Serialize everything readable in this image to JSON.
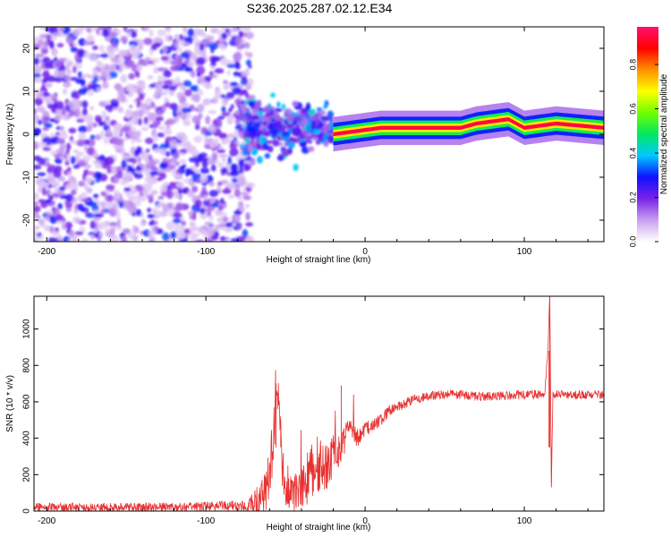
{
  "title": "S236.2025.287.02.12.E34",
  "chart_data": [
    {
      "type": "heatmap",
      "name": "spectrogram",
      "xlabel": "Height of straight line (km)",
      "ylabel": "Frequency (Hz)",
      "xlim": [
        -208,
        150
      ],
      "ylim": [
        -25,
        25
      ],
      "xticks": [
        -200,
        -100,
        0,
        100
      ],
      "yticks": [
        -20,
        -10,
        0,
        10,
        20
      ],
      "xtick_labels": [
        "-200",
        "-100",
        "0",
        "100"
      ],
      "ytick_labels": [
        "-20",
        "-10",
        "0",
        "10",
        "20"
      ],
      "colorbar": {
        "label": "Normalized spectral amplitude",
        "range": [
          0.0,
          0.97
        ],
        "ticks": [
          0.0,
          0.2,
          0.4,
          0.6,
          0.8
        ],
        "tick_labels": [
          "0.0",
          "0.2",
          "0.4",
          "0.6",
          "0.8"
        ],
        "colors": [
          "#ffffff",
          "#c8a0f0",
          "#7b22e8",
          "#1010ff",
          "#00c8ff",
          "#00e860",
          "#70ff00",
          "#ffff00",
          "#ff9000",
          "#ff0000",
          "#ff1070"
        ]
      },
      "regions": [
        {
          "description": "noise",
          "x_range": [
            -208,
            -78
          ],
          "freq_range": [
            -25,
            25
          ],
          "amplitude": 0.1
        },
        {
          "description": "transition",
          "x_range": [
            -78,
            -20
          ],
          "freq_range": [
            -8,
            10
          ],
          "amplitude": 0.2
        },
        {
          "description": "signal line",
          "x_range": [
            -20,
            150
          ],
          "freq_center": [
            [
              -20,
              0
            ],
            [
              0,
              1
            ],
            [
              10,
              1.5
            ],
            [
              60,
              1.5
            ],
            [
              70,
              2.5
            ],
            [
              90,
              3.5
            ],
            [
              100,
              1.5
            ],
            [
              120,
              2.5
            ],
            [
              150,
              1.5
            ]
          ],
          "amplitude": 0.9
        }
      ]
    },
    {
      "type": "line",
      "name": "snr",
      "xlabel": "Height of straight line (km)",
      "ylabel": "SNR (10 * v/v)",
      "xlim": [
        -208,
        150
      ],
      "ylim": [
        0,
        1180
      ],
      "xticks": [
        -200,
        -100,
        0,
        100
      ],
      "yticks": [
        0,
        200,
        400,
        600,
        800,
        1000
      ],
      "xtick_labels": [
        "-200",
        "-100",
        "0",
        "100"
      ],
      "ytick_labels": [
        "0",
        "200",
        "400",
        "600",
        "800",
        "1000"
      ],
      "series": [
        {
          "name": "SNR",
          "color": "#e83030",
          "x": [
            -208,
            -150,
            -100,
            -75,
            -65,
            -60,
            -57,
            -55,
            -52,
            -50,
            -45,
            -40,
            -35,
            -30,
            -25,
            -20,
            -15,
            -10,
            -5,
            0,
            5,
            10,
            15,
            20,
            30,
            40,
            50,
            60,
            70,
            80,
            90,
            100,
            110,
            113,
            115,
            116,
            117,
            118,
            120,
            130,
            150
          ],
          "values": [
            20,
            20,
            25,
            30,
            60,
            200,
            450,
            700,
            250,
            150,
            120,
            130,
            200,
            250,
            230,
            300,
            350,
            450,
            400,
            450,
            470,
            500,
            550,
            570,
            610,
            630,
            640,
            640,
            630,
            630,
            635,
            640,
            640,
            650,
            900,
            1180,
            130,
            650,
            640,
            640,
            640
          ],
          "noise_band": [
            [
              -208,
              25
            ],
            [
              -100,
              25
            ],
            [
              -75,
              30
            ],
            [
              -60,
              150
            ],
            [
              -50,
              120
            ],
            [
              -40,
              140
            ],
            [
              -30,
              160
            ],
            [
              -20,
              120
            ],
            [
              -10,
              60
            ],
            [
              0,
              40
            ],
            [
              20,
              30
            ],
            [
              50,
              25
            ],
            [
              150,
              25
            ]
          ]
        }
      ]
    }
  ]
}
